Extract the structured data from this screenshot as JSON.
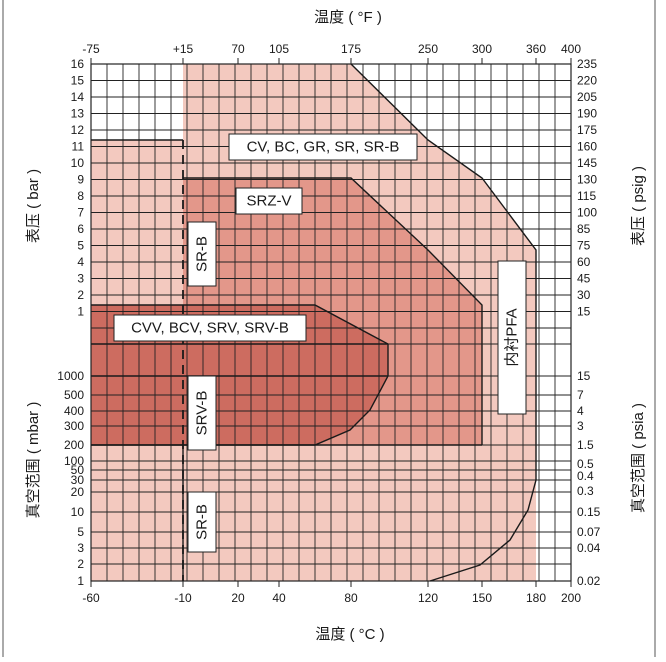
{
  "chart_data": {
    "type": "area",
    "x_axis_bottom": {
      "title": "温度 ( °C )",
      "ticks": [
        "-60",
        "-10",
        "20",
        "40",
        "80",
        "120",
        "150",
        "180",
        "200"
      ]
    },
    "x_axis_top": {
      "title": "温度 ( °F )",
      "ticks": [
        "-75",
        "+15",
        "70",
        "105",
        "175",
        "250",
        "300",
        "360",
        "400"
      ]
    },
    "y_axis_left_pressure": {
      "title": "表压 ( bar )",
      "ticks": [
        "16",
        "15",
        "14",
        "13",
        "12",
        "11",
        "10",
        "9",
        "8",
        "7",
        "6",
        "5",
        "4",
        "3",
        "2",
        "1"
      ]
    },
    "y_axis_left_vacuum": {
      "title": "真空范围 ( mbar )",
      "ticks": [
        "1000",
        "500",
        "400",
        "300",
        "200",
        "100",
        "50",
        "30",
        "20",
        "10",
        "5",
        "3",
        "2",
        "1"
      ]
    },
    "y_axis_right_pressure": {
      "title": "表压 ( psig )",
      "ticks": [
        "235",
        "220",
        "205",
        "190",
        "175",
        "160",
        "145",
        "130",
        "115",
        "100",
        "85",
        "75",
        "60",
        "45",
        "30",
        "15"
      ]
    },
    "y_axis_right_vacuum": {
      "title": "真空范围 ( psia )",
      "ticks": [
        "15",
        "7",
        "4",
        "3",
        "1.5",
        "0.5",
        "0.4",
        "0.3",
        "0.15",
        "0.07",
        "0.04",
        "0.02"
      ]
    },
    "regions": [
      {
        "label": "CV, BC, GR, SR, SR-B",
        "color": "#f3c9bf"
      },
      {
        "label": "SRZ-V",
        "color": "#e3978a"
      },
      {
        "label": "CVV, BCV, SRV, SRV-B",
        "color": "#cd6c60"
      },
      {
        "label": "SR-B",
        "color": "#f3c9bf"
      },
      {
        "label": "SRV-B",
        "color": "#cd6c60"
      },
      {
        "label": "SR-B",
        "color": "#f3c9bf"
      },
      {
        "label": "内衬PFA",
        "color": "#e3978a"
      }
    ],
    "grid": true
  }
}
